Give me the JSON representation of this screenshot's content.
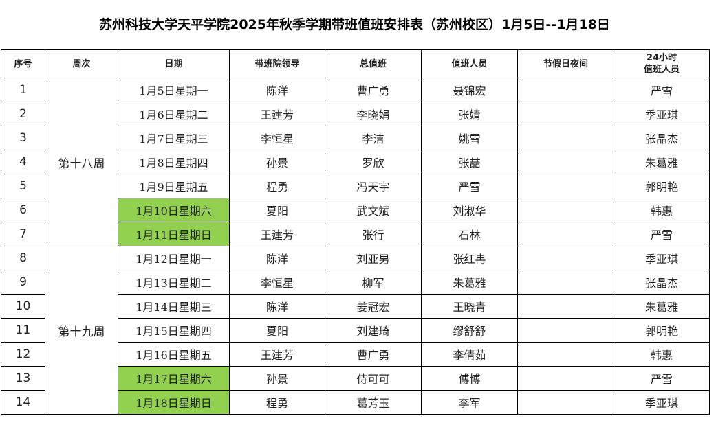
{
  "title": "苏州科技大学天平学院2025年秋季学期带班值班安排表（苏州校区）1月5日--1月18日",
  "headers": [
    "序号",
    "周次",
    "日期",
    "带班院领导",
    "总值班",
    "值班人员",
    "节假日夜间",
    "24小时\n值班人员"
  ],
  "weeks": [
    {
      "label": "第十八周",
      "span": 7
    },
    {
      "label": "第十九周",
      "span": 7
    }
  ],
  "highlight_color": "#92d050",
  "rows": [
    {
      "no": "1",
      "date": "1月5日星期一",
      "leader": "陈洋",
      "chief": "曹广勇",
      "staff": "聂锦宏",
      "holiday": "",
      "h24": "严雪",
      "weekend": false
    },
    {
      "no": "2",
      "date": "1月6日星期二",
      "leader": "王建芳",
      "chief": "李晓娟",
      "staff": "张婧",
      "holiday": "",
      "h24": "季亚琪",
      "weekend": false
    },
    {
      "no": "3",
      "date": "1月7日星期三",
      "leader": "李恒星",
      "chief": "李洁",
      "staff": "姚雪",
      "holiday": "",
      "h24": "张晶杰",
      "weekend": false
    },
    {
      "no": "4",
      "date": "1月8日星期四",
      "leader": "孙景",
      "chief": "罗欣",
      "staff": "张喆",
      "holiday": "",
      "h24": "朱葛雅",
      "weekend": false
    },
    {
      "no": "5",
      "date": "1月9日星期五",
      "leader": "程勇",
      "chief": "冯天宇",
      "staff": "严雪",
      "holiday": "",
      "h24": "郭明艳",
      "weekend": false
    },
    {
      "no": "6",
      "date": "1月10日星期六",
      "leader": "夏阳",
      "chief": "武文斌",
      "staff": "刘淑华",
      "holiday": "",
      "h24": "韩惠",
      "weekend": true
    },
    {
      "no": "7",
      "date": "1月11日星期日",
      "leader": "王建芳",
      "chief": "张行",
      "staff": "石林",
      "holiday": "",
      "h24": "严雪",
      "weekend": true
    },
    {
      "no": "8",
      "date": "1月12日星期一",
      "leader": "陈洋",
      "chief": "刘亚男",
      "staff": "张红冉",
      "holiday": "",
      "h24": "季亚琪",
      "weekend": false
    },
    {
      "no": "9",
      "date": "1月13日星期二",
      "leader": "李恒星",
      "chief": "柳军",
      "staff": "朱葛雅",
      "holiday": "",
      "h24": "张晶杰",
      "weekend": false
    },
    {
      "no": "10",
      "date": "1月14日星期三",
      "leader": "陈洋",
      "chief": "姜冠宏",
      "staff": "王晓青",
      "holiday": "",
      "h24": "朱葛雅",
      "weekend": false
    },
    {
      "no": "11",
      "date": "1月15日星期四",
      "leader": "夏阳",
      "chief": "刘建琦",
      "staff": "缪舒舒",
      "holiday": "",
      "h24": "郭明艳",
      "weekend": false
    },
    {
      "no": "12",
      "date": "1月16日星期五",
      "leader": "王建芳",
      "chief": "曹广勇",
      "staff": "李倩茹",
      "holiday": "",
      "h24": "韩惠",
      "weekend": false
    },
    {
      "no": "13",
      "date": "1月17日星期六",
      "leader": "孙景",
      "chief": "侍可可",
      "staff": "傅博",
      "holiday": "",
      "h24": "严雪",
      "weekend": true
    },
    {
      "no": "14",
      "date": "1月18日星期日",
      "leader": "程勇",
      "chief": "葛芳玉",
      "staff": "李军",
      "holiday": "",
      "h24": "季亚琪",
      "weekend": true
    }
  ]
}
